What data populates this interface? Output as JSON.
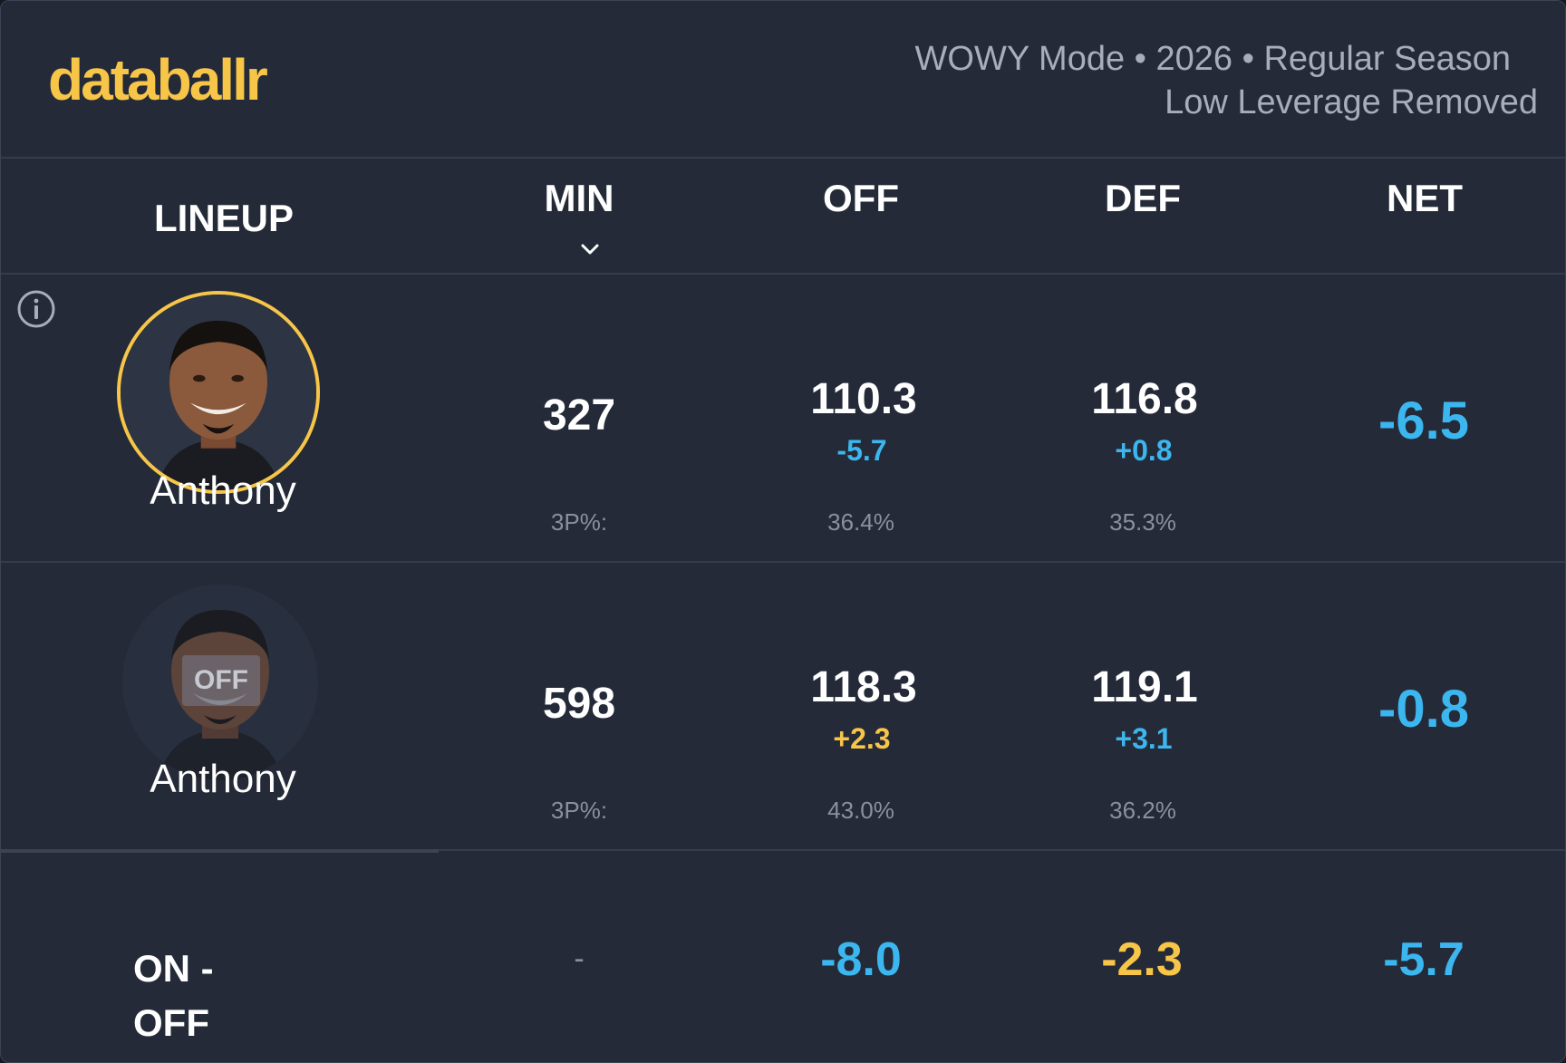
{
  "brand": {
    "logo_text": "databallr"
  },
  "meta": {
    "line1": "WOWY Mode • 2026 • Regular Season",
    "line2": "Low Leverage Removed"
  },
  "columns": {
    "lineup": "LINEUP",
    "min": "MIN",
    "off": "OFF",
    "def": "DEF",
    "net": "NET"
  },
  "rows": [
    {
      "status": "on",
      "player_name": "Anthony",
      "min": "327",
      "off": "110.3",
      "off_delta": "-5.7",
      "def": "116.8",
      "def_delta": "+0.8",
      "net": "-6.5",
      "threep_label": "3P%:",
      "off_3p": "36.4%",
      "def_3p": "35.3%"
    },
    {
      "status": "off",
      "badge": "OFF",
      "player_name": "Anthony",
      "min": "598",
      "off": "118.3",
      "off_delta": "+2.3",
      "def": "119.1",
      "def_delta": "+3.1",
      "net": "-0.8",
      "threep_label": "3P%:",
      "off_3p": "43.0%",
      "def_3p": "36.2%"
    }
  ],
  "on_off": {
    "label_line1": "ON -",
    "label_line2": "OFF",
    "min": "-",
    "off": "-8.0",
    "def": "-2.3",
    "net": "-5.7"
  },
  "colors": {
    "background": "#242a38",
    "accent": "#f7c548",
    "positive_blue": "#3cb6ee",
    "text": "#ffffff",
    "muted": "#8a909c"
  },
  "icons": {
    "info": "info-icon",
    "sort": "chevron-down-icon"
  }
}
